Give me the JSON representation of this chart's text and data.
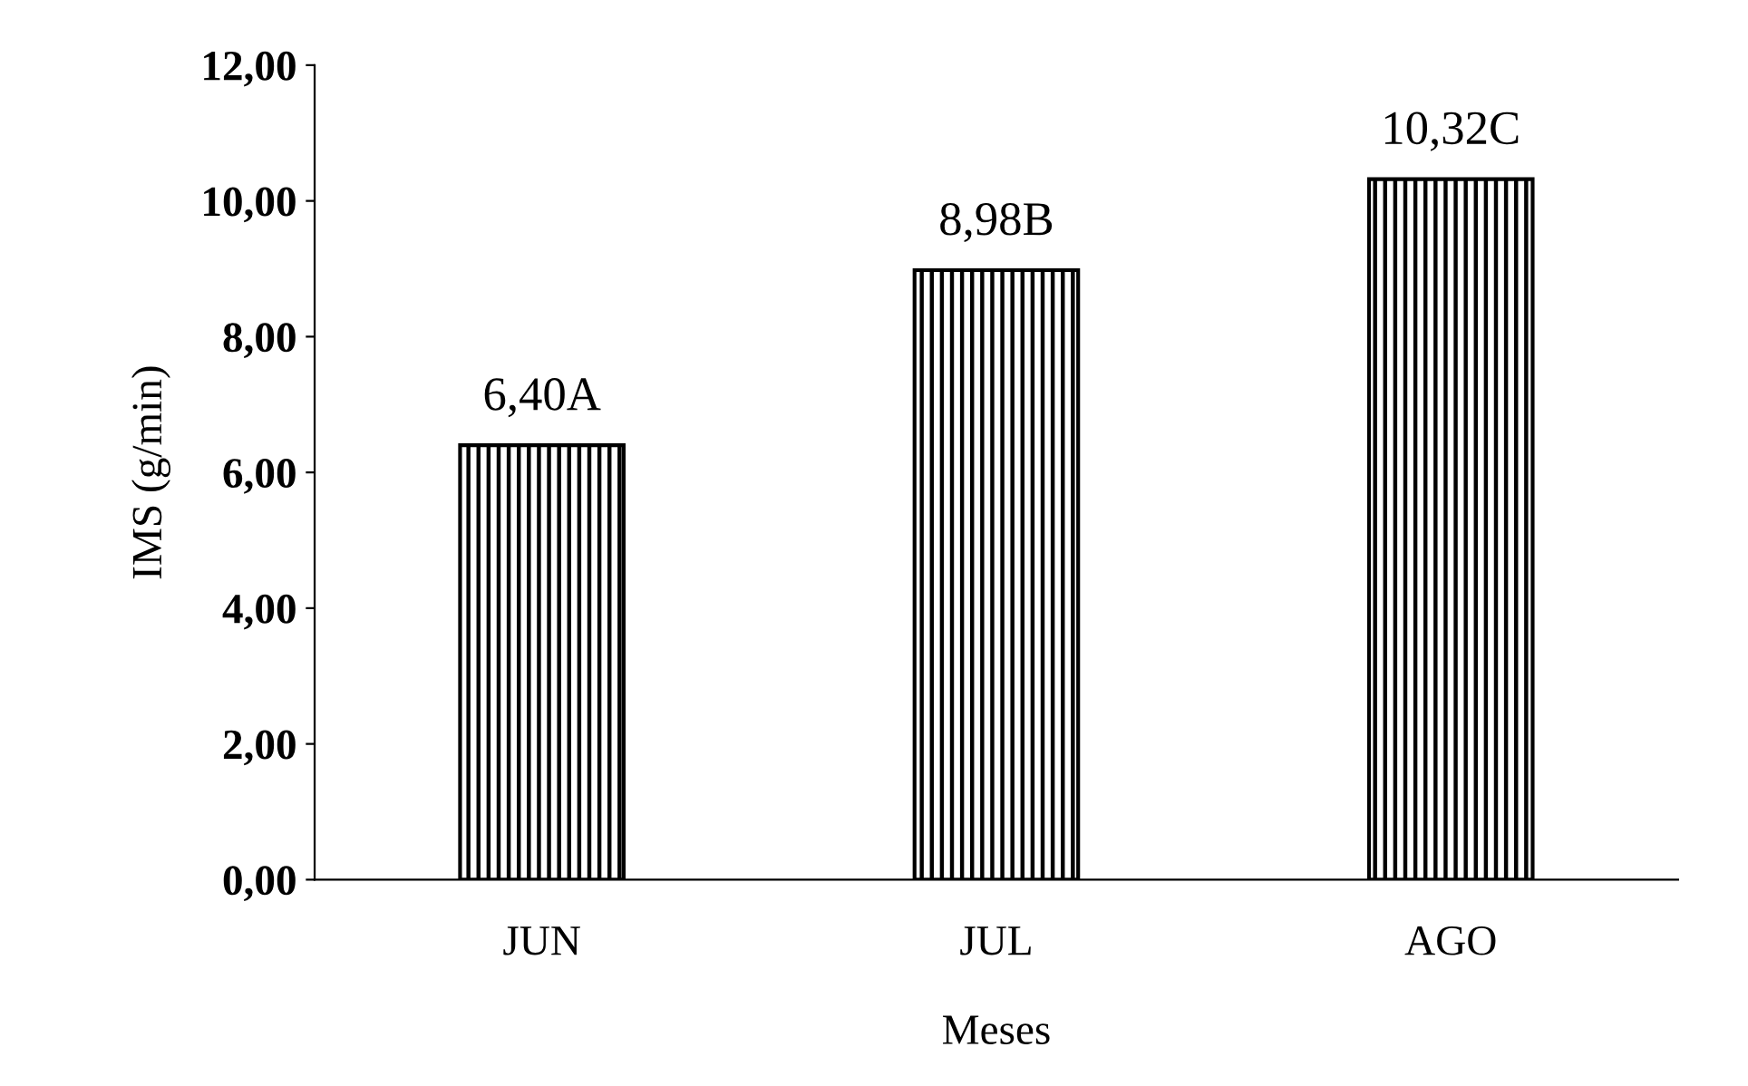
{
  "chart_data": {
    "type": "bar",
    "xlabel": "Meses",
    "ylabel": "IMS (g/min)",
    "categories": [
      "JUN",
      "JUL",
      "AGO"
    ],
    "values": [
      6.4,
      8.98,
      10.32
    ],
    "value_labels": [
      "6,40A",
      "8,98B",
      "10,32C"
    ],
    "color": "#000000",
    "ylim": [
      0,
      12
    ],
    "yticks": [
      {
        "value": 0,
        "label": "0,00"
      },
      {
        "value": 2,
        "label": "2,00"
      },
      {
        "value": 4,
        "label": "4,00"
      },
      {
        "value": 6,
        "label": "6,00"
      },
      {
        "value": 8,
        "label": "8,00"
      },
      {
        "value": 10,
        "label": "10,00"
      },
      {
        "value": 12,
        "label": "12,00"
      }
    ],
    "grid": false,
    "legend": false
  }
}
